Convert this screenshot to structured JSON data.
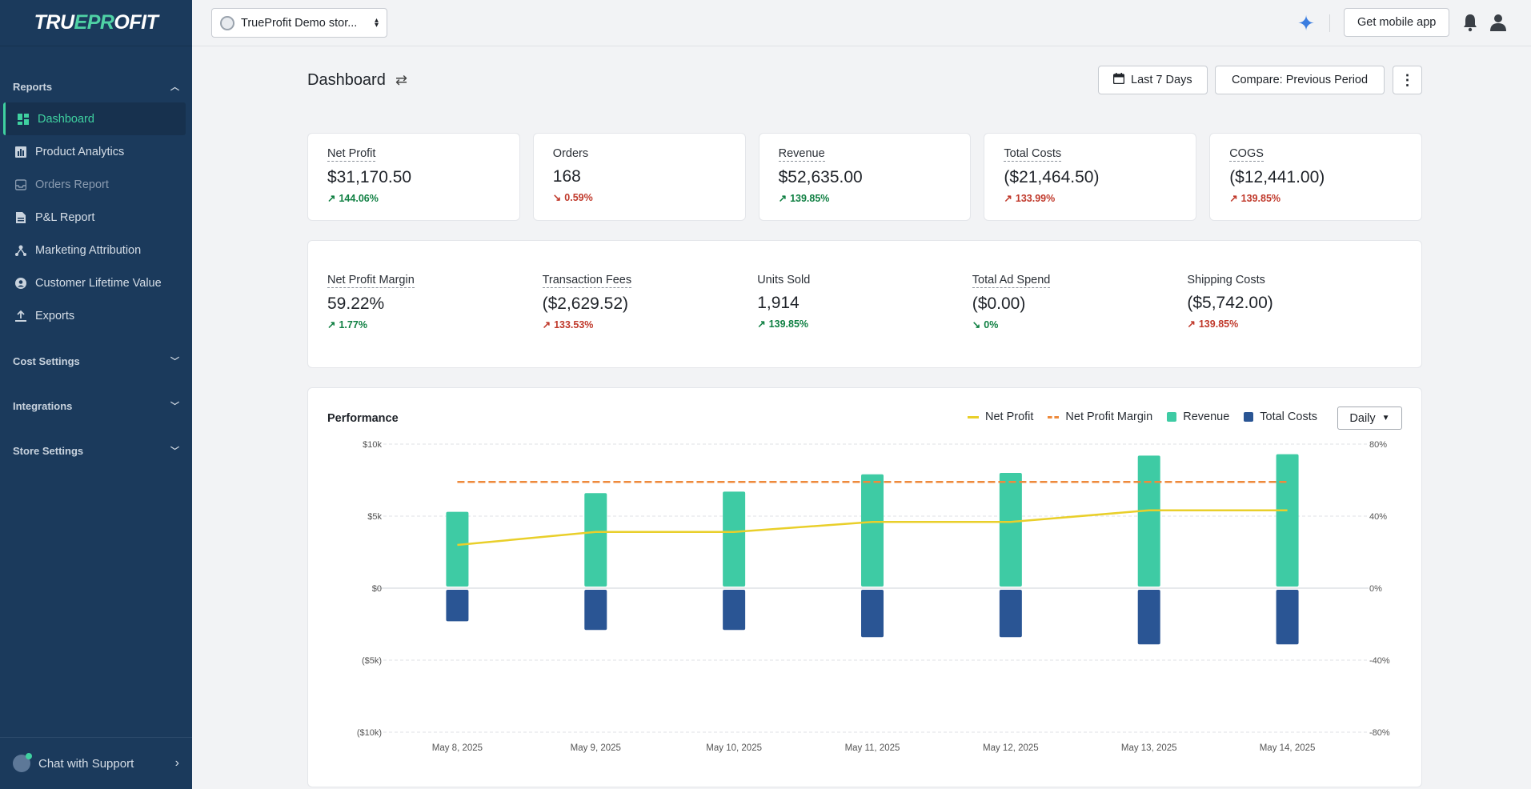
{
  "brand": {
    "logo_a": "TR",
    "logo_b": "U",
    "logo_c": "EPR",
    "logo_d": "O",
    "logo_e": "FIT"
  },
  "sidebar": {
    "reports_label": "Reports",
    "items": [
      {
        "label": "Dashboard",
        "icon": "dashboard-icon"
      },
      {
        "label": "Product Analytics",
        "icon": "bar-chart-icon"
      },
      {
        "label": "Orders Report",
        "icon": "inbox-icon"
      },
      {
        "label": "P&L Report",
        "icon": "document-icon"
      },
      {
        "label": "Marketing Attribution",
        "icon": "network-icon"
      },
      {
        "label": "Customer Lifetime Value",
        "icon": "user-circle-icon"
      },
      {
        "label": "Exports",
        "icon": "upload-icon"
      }
    ],
    "cost_settings": "Cost Settings",
    "integrations": "Integrations",
    "store_settings": "Store Settings",
    "chat_label": "Chat with Support"
  },
  "topbar": {
    "store_name": "TrueProfit Demo stor...",
    "mobile_label": "Get mobile app"
  },
  "page": {
    "title": "Dashboard",
    "date_range": "Last 7 Days",
    "compare": "Compare: Previous Period"
  },
  "metrics_row1": [
    {
      "label": "Net Profit",
      "value": "$31,170.50",
      "change": "144.06%",
      "arrow": "↗"
    },
    {
      "label": "Orders",
      "value": "168",
      "change": "0.59%",
      "arrow": "↘"
    },
    {
      "label": "Revenue",
      "value": "$52,635.00",
      "change": "139.85%",
      "arrow": "↗"
    },
    {
      "label": "Total Costs",
      "value": "($21,464.50)",
      "change": "133.99%",
      "arrow": "↗"
    },
    {
      "label": "COGS",
      "value": "($12,441.00)",
      "change": "139.85%",
      "arrow": "↗"
    }
  ],
  "metrics_row2": [
    {
      "label": "Net Profit Margin",
      "value": "59.22%",
      "change": "1.77%",
      "arrow": "↗"
    },
    {
      "label": "Transaction Fees",
      "value": "($2,629.52)",
      "change": "133.53%",
      "arrow": "↗"
    },
    {
      "label": "Units Sold",
      "value": "1,914",
      "change": "139.85%",
      "arrow": "↗"
    },
    {
      "label": "Total Ad Spend",
      "value": "($0.00)",
      "change": "0%",
      "arrow": "↘"
    },
    {
      "label": "Shipping Costs",
      "value": "($5,742.00)",
      "change": "139.85%",
      "arrow": "↗"
    }
  ],
  "performance": {
    "title": "Performance",
    "granularity": "Daily",
    "legend": [
      "Net Profit",
      "Net Profit Margin",
      "Revenue",
      "Total Costs"
    ]
  },
  "colors": {
    "revenue": "#3ecba4",
    "total_costs": "#2a5594",
    "net_profit": "#e9cf2a",
    "margin": "#ee8a3c",
    "accent": "#3fd1a0"
  },
  "chart_data": {
    "type": "bar",
    "title": "Performance",
    "categories": [
      "May 8, 2025",
      "May 9, 2025",
      "May 10, 2025",
      "May 11, 2025",
      "May 12, 2025",
      "May 13, 2025",
      "May 14, 2025"
    ],
    "series": [
      {
        "name": "Revenue",
        "type": "bar",
        "axis": "left",
        "values": [
          5300,
          6600,
          6700,
          7900,
          8000,
          9200,
          9300
        ]
      },
      {
        "name": "Total Costs",
        "type": "bar",
        "axis": "left",
        "values": [
          -2300,
          -2900,
          -2900,
          -3400,
          -3400,
          -3900,
          -3900
        ]
      },
      {
        "name": "Net Profit",
        "type": "line",
        "axis": "left",
        "values": [
          3000,
          3900,
          3900,
          4600,
          4600,
          5400,
          5400
        ]
      },
      {
        "name": "Net Profit Margin",
        "type": "line",
        "axis": "right",
        "values": [
          59,
          59,
          59,
          59,
          59,
          59,
          59
        ]
      }
    ],
    "y_left_ticks": [
      "$10k",
      "$5k",
      "$0",
      "($5k)",
      "($10k)"
    ],
    "y_left_range": [
      -10000,
      10000
    ],
    "y_right_ticks": [
      "80%",
      "40%",
      "0%",
      "-40%",
      "-80%"
    ],
    "y_right_range": [
      -80,
      80
    ]
  }
}
